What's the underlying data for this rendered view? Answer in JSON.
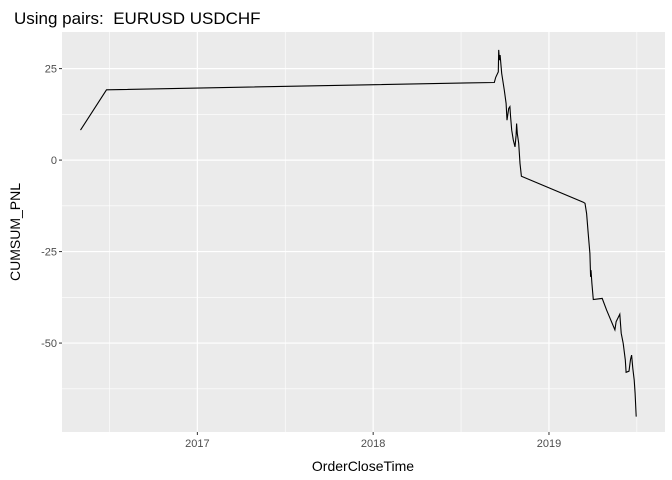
{
  "chart_data": {
    "type": "line",
    "title": "Using pairs:  EURUSD USDCHF",
    "xlabel": "OrderCloseTime",
    "ylabel": "CUMSUM_PNL",
    "x_unit": "year",
    "xlim": [
      2016.23,
      2019.66
    ],
    "ylim": [
      -74.3,
      35.0
    ],
    "x_ticks": [
      {
        "value": 2017,
        "label": "2017"
      },
      {
        "value": 2018,
        "label": "2018"
      },
      {
        "value": 2019,
        "label": "2019"
      }
    ],
    "y_ticks": [
      {
        "value": 25,
        "label": "25"
      },
      {
        "value": 0,
        "label": "0"
      },
      {
        "value": -25,
        "label": "-25"
      },
      {
        "value": -50,
        "label": "-50"
      }
    ],
    "grid": true,
    "colors": {
      "panel": "#ebebeb",
      "grid": "#ffffff",
      "line": "#000000"
    },
    "series": [
      {
        "x": [
          2016.335,
          2016.483,
          2018.532,
          2018.689,
          2018.697,
          2018.712,
          2018.714,
          2018.718,
          2018.722,
          2018.731,
          2018.746,
          2018.756,
          2018.761,
          2018.771,
          2018.778,
          2018.782,
          2018.788,
          2018.797,
          2018.807,
          2018.813,
          2018.816,
          2018.82,
          2018.828,
          2018.835,
          2018.843,
          2019.195,
          2019.205,
          2019.214,
          2019.223,
          2019.233,
          2019.237,
          2019.239,
          2019.244,
          2019.252,
          2019.303,
          2019.328,
          2019.375,
          2019.382,
          2019.403,
          2019.411,
          2019.422,
          2019.434,
          2019.439,
          2019.455,
          2019.464,
          2019.47,
          2019.477,
          2019.485,
          2019.49,
          2019.496
        ],
        "y": [
          8.2,
          19.2,
          21.1,
          21.2,
          22.6,
          24.1,
          30.1,
          27.3,
          28.7,
          23.7,
          19.1,
          15.5,
          10.9,
          14.1,
          14.6,
          11.8,
          8.2,
          5.5,
          3.6,
          6.8,
          10.0,
          7.3,
          4.6,
          -0.9,
          -4.4,
          -11.5,
          -11.8,
          -14.6,
          -20.0,
          -25.5,
          -31.9,
          -30.1,
          -33.7,
          -38.1,
          -37.8,
          -41.0,
          -46.4,
          -44.2,
          -42.1,
          -47.3,
          -50.1,
          -54.6,
          -58.0,
          -57.7,
          -54.5,
          -53.3,
          -56.9,
          -60.1,
          -63.7,
          -70.1
        ]
      }
    ]
  }
}
